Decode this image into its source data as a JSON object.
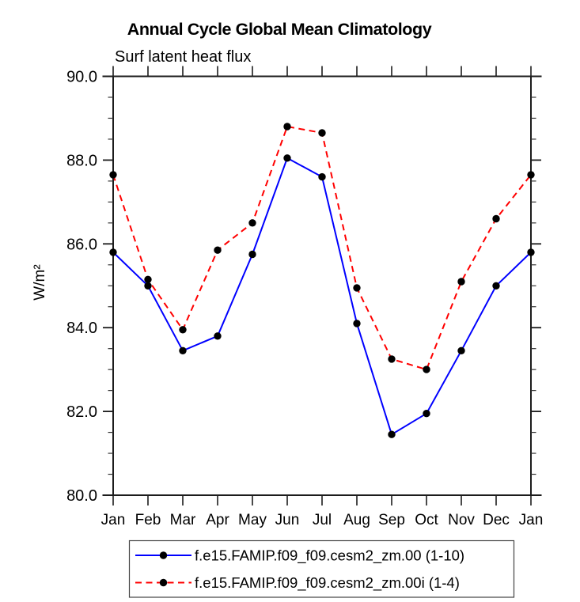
{
  "chart_data": {
    "type": "line",
    "title": "Annual Cycle Global Mean Climatology",
    "subtitle": "Surf latent heat flux",
    "ylabel": "W/m²",
    "xlabel": "",
    "categories": [
      "Jan",
      "Feb",
      "Mar",
      "Apr",
      "May",
      "Jun",
      "Jul",
      "Aug",
      "Sep",
      "Oct",
      "Nov",
      "Dec",
      "Jan"
    ],
    "ylim": [
      80.0,
      90.0
    ],
    "yticks": [
      {
        "value": 90.0,
        "label": "90.0"
      },
      {
        "value": 88.0,
        "label": "88.0"
      },
      {
        "value": 86.0,
        "label": "86.0"
      },
      {
        "value": 84.0,
        "label": "84.0"
      },
      {
        "value": 82.0,
        "label": "82.0"
      },
      {
        "value": 80.0,
        "label": "80.0"
      }
    ],
    "ytick_minor_step": 0.5,
    "grid": false,
    "legend_position": "bottom-center",
    "series": [
      {
        "name": "f.e15.FAMIP.f09_f09.cesm2_zm.00 (1-10)",
        "color": "#0000ff",
        "line_style": "solid",
        "marker": "circle",
        "marker_color": "#000000",
        "values": [
          85.8,
          85.0,
          83.45,
          83.8,
          85.75,
          88.05,
          87.6,
          84.1,
          81.45,
          81.95,
          83.45,
          85.0,
          85.8
        ]
      },
      {
        "name": "f.e15.FAMIP.f09_f09.cesm2_zm.00i (1-4)",
        "color": "#ff0000",
        "line_style": "dashed",
        "marker": "circle",
        "marker_color": "#000000",
        "values": [
          87.65,
          85.15,
          83.95,
          85.85,
          86.5,
          88.8,
          88.65,
          84.95,
          83.25,
          83.0,
          85.1,
          86.6,
          87.65
        ]
      }
    ]
  },
  "colors": {
    "background": "#ffffff",
    "axis": "#1c1c1c",
    "minor_tick": "#333333",
    "text": "#000000",
    "legend_border": "#444444"
  }
}
